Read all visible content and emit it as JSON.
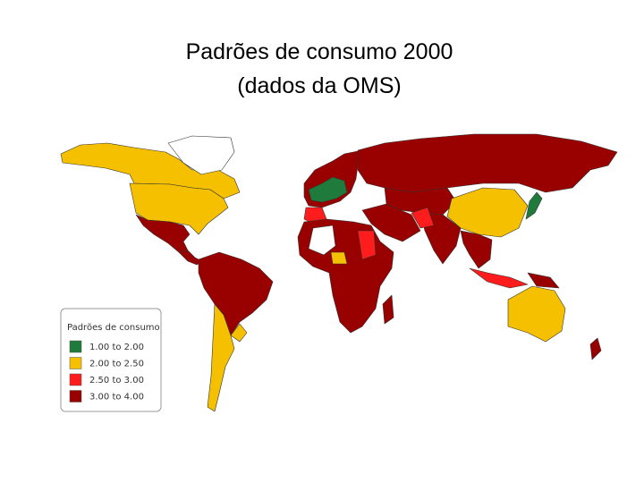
{
  "title": [
    "Padrões de consumo 2000",
    "(dados da OMS)"
  ],
  "legend": {
    "title": "Padrões de consumo",
    "items": [
      {
        "label": "1.00 to 2.00",
        "color": "#1e7b3b"
      },
      {
        "label": "2.00 to 2.50",
        "color": "#f5c000"
      },
      {
        "label": "2.50 to 3.00",
        "color": "#ff1c1c"
      },
      {
        "label": "3.00 to 4.00",
        "color": "#990000"
      }
    ]
  }
}
